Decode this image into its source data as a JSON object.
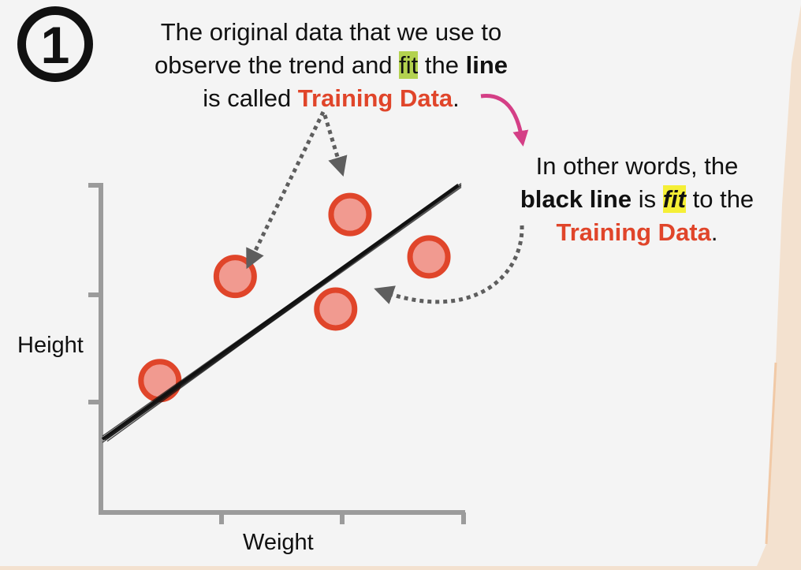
{
  "step_number": "1",
  "top_caption": {
    "line1": "The original data that we use to",
    "line2_a": "observe the trend and ",
    "line2_fit": "fit",
    "line2_b": " the ",
    "line2_bold": "line",
    "line3_a": "is called ",
    "line3_red": "Training Data",
    "line3_b": "."
  },
  "side_caption": {
    "line1": "In other words, the",
    "line2_bold": "black line",
    "line2_a": " is ",
    "line2_fit": "fit",
    "line2_b": " to the",
    "line3_red": "Training Data",
    "line3_b": "."
  },
  "axes": {
    "ylabel": "Height",
    "xlabel": "Weight"
  },
  "colors": {
    "point_fill": "#f19a90",
    "point_stroke": "#e0452a",
    "axis": "#9b9b9b",
    "arrow_gray": "#5e5e5e",
    "arrow_magenta": "#d43f86",
    "highlight_green": "#b3d24f",
    "highlight_yellow": "#f5ef36"
  },
  "chart_data": {
    "type": "scatter",
    "xlabel": "Weight",
    "ylabel": "Height",
    "series": [
      {
        "points": [
          {
            "x": 0.16,
            "y": 0.4
          },
          {
            "x": 0.37,
            "y": 0.72
          },
          {
            "x": 0.65,
            "y": 0.62
          },
          {
            "x": 0.69,
            "y": 0.91
          },
          {
            "x": 0.91,
            "y": 0.78
          }
        ]
      }
    ],
    "fit_line": {
      "x1": 0.0,
      "y1": 0.22,
      "x2": 1.0,
      "y2": 1.0
    },
    "xlim": [
      0,
      1
    ],
    "ylim": [
      0,
      1
    ]
  }
}
